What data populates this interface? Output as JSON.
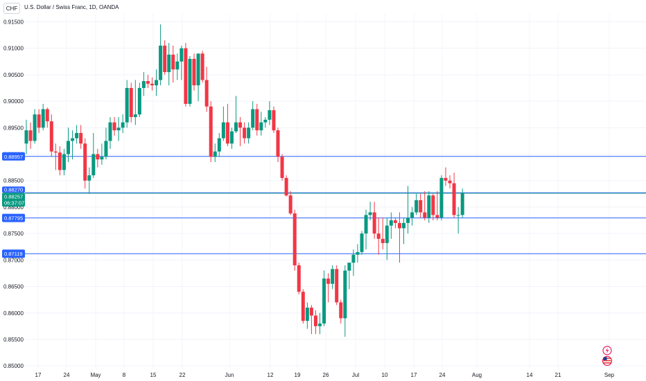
{
  "header": {
    "symbol": "CHF",
    "title": "U.S. Dollar / Swiss Franc, 1D, OANDA"
  },
  "price_tags": {
    "current_price": "0.88257",
    "countdown": "06:37:07"
  },
  "colors": {
    "up": "#089981",
    "down": "#f23645",
    "level_line": "#2962ff",
    "price_line": "#2a9d8f"
  },
  "icons": [
    "lightning-icon",
    "us-flag-icon"
  ],
  "chart_data": {
    "type": "candlestick",
    "ylim": [
      0.8495,
      0.9165
    ],
    "y_ticks": [
      "0.91500",
      "0.91000",
      "0.90500",
      "0.90000",
      "0.89500",
      "0.89000",
      "0.88500",
      "0.88000",
      "0.87500",
      "0.87000",
      "0.86500",
      "0.86000",
      "0.85500",
      "0.85000"
    ],
    "x_ticks": [
      "17",
      "24",
      "May",
      "8",
      "15",
      "22",
      "Jun",
      "12",
      "19",
      "26",
      "Jul",
      "10",
      "17",
      "24",
      "Aug",
      "14",
      "21",
      "Sep"
    ],
    "levels": [
      {
        "price": "0.88957"
      },
      {
        "price": "0.88270"
      },
      {
        "price": "0.87795"
      },
      {
        "price": "0.87119"
      }
    ],
    "candles": [
      [
        0.892,
        0.8965,
        0.89,
        0.8945
      ],
      [
        0.8945,
        0.896,
        0.891,
        0.8925
      ],
      [
        0.8925,
        0.8985,
        0.892,
        0.8975
      ],
      [
        0.8975,
        0.8985,
        0.894,
        0.895
      ],
      [
        0.895,
        0.8995,
        0.8945,
        0.8985
      ],
      [
        0.8985,
        0.8988,
        0.895,
        0.8962
      ],
      [
        0.8962,
        0.8975,
        0.8895,
        0.8905
      ],
      [
        0.8905,
        0.892,
        0.887,
        0.8903
      ],
      [
        0.8903,
        0.8915,
        0.886,
        0.887
      ],
      [
        0.887,
        0.891,
        0.886,
        0.89
      ],
      [
        0.89,
        0.895,
        0.8885,
        0.8925
      ],
      [
        0.8925,
        0.8945,
        0.889,
        0.893
      ],
      [
        0.893,
        0.8955,
        0.892,
        0.894
      ],
      [
        0.894,
        0.8955,
        0.891,
        0.892
      ],
      [
        0.892,
        0.893,
        0.8835,
        0.885
      ],
      [
        0.885,
        0.8875,
        0.8825,
        0.886
      ],
      [
        0.886,
        0.894,
        0.8855,
        0.89
      ],
      [
        0.89,
        0.891,
        0.8875,
        0.889
      ],
      [
        0.889,
        0.892,
        0.888,
        0.8895
      ],
      [
        0.8895,
        0.895,
        0.889,
        0.8925
      ],
      [
        0.8925,
        0.897,
        0.891,
        0.896
      ],
      [
        0.896,
        0.897,
        0.8935,
        0.8945
      ],
      [
        0.8945,
        0.897,
        0.8925,
        0.895
      ],
      [
        0.895,
        0.8975,
        0.894,
        0.896
      ],
      [
        0.896,
        0.904,
        0.895,
        0.9025
      ],
      [
        0.9025,
        0.9035,
        0.896,
        0.897
      ],
      [
        0.897,
        0.904,
        0.8955,
        0.8975
      ],
      [
        0.8975,
        0.9035,
        0.897,
        0.9025
      ],
      [
        0.9025,
        0.9055,
        0.901,
        0.9038
      ],
      [
        0.9038,
        0.905,
        0.9025,
        0.9033
      ],
      [
        0.9033,
        0.9045,
        0.902,
        0.903
      ],
      [
        0.903,
        0.906,
        0.901,
        0.904
      ],
      [
        0.904,
        0.9145,
        0.903,
        0.9105
      ],
      [
        0.9105,
        0.9115,
        0.905,
        0.9055
      ],
      [
        0.9055,
        0.911,
        0.903,
        0.9088
      ],
      [
        0.9088,
        0.9105,
        0.9035,
        0.906
      ],
      [
        0.906,
        0.909,
        0.904,
        0.9075
      ],
      [
        0.9075,
        0.9105,
        0.904,
        0.91
      ],
      [
        0.91,
        0.911,
        0.899,
        0.8995
      ],
      [
        0.8995,
        0.9085,
        0.899,
        0.908
      ],
      [
        0.908,
        0.909,
        0.902,
        0.903
      ],
      [
        0.903,
        0.909,
        0.9,
        0.909
      ],
      [
        0.909,
        0.9095,
        0.9035,
        0.904
      ],
      [
        0.904,
        0.9065,
        0.898,
        0.899
      ],
      [
        0.899,
        0.9,
        0.8885,
        0.8895
      ],
      [
        0.8895,
        0.892,
        0.8885,
        0.8905
      ],
      [
        0.8905,
        0.894,
        0.8895,
        0.893
      ],
      [
        0.893,
        0.899,
        0.8925,
        0.896
      ],
      [
        0.896,
        0.8995,
        0.8915,
        0.892
      ],
      [
        0.892,
        0.895,
        0.891,
        0.8943
      ],
      [
        0.8943,
        0.901,
        0.894,
        0.896
      ],
      [
        0.896,
        0.897,
        0.8915,
        0.895
      ],
      [
        0.895,
        0.896,
        0.892,
        0.893
      ],
      [
        0.893,
        0.896,
        0.892,
        0.895
      ],
      [
        0.895,
        0.9,
        0.8945,
        0.8985
      ],
      [
        0.8985,
        0.8995,
        0.8935,
        0.8945
      ],
      [
        0.8945,
        0.898,
        0.8935,
        0.896
      ],
      [
        0.896,
        0.897,
        0.895,
        0.8965
      ],
      [
        0.8965,
        0.9,
        0.8955,
        0.8983
      ],
      [
        0.8983,
        0.899,
        0.894,
        0.8945
      ],
      [
        0.8945,
        0.895,
        0.8885,
        0.8895
      ],
      [
        0.8895,
        0.89,
        0.885,
        0.8855
      ],
      [
        0.8855,
        0.886,
        0.882,
        0.8822
      ],
      [
        0.8822,
        0.883,
        0.8785,
        0.8788
      ],
      [
        0.8788,
        0.8795,
        0.868,
        0.869
      ],
      [
        0.869,
        0.8695,
        0.8635,
        0.864
      ],
      [
        0.864,
        0.8645,
        0.858,
        0.8585
      ],
      [
        0.8585,
        0.862,
        0.857,
        0.861
      ],
      [
        0.861,
        0.8615,
        0.856,
        0.8595
      ],
      [
        0.8595,
        0.8605,
        0.856,
        0.8575
      ],
      [
        0.8575,
        0.86,
        0.856,
        0.858
      ],
      [
        0.858,
        0.868,
        0.8575,
        0.8665
      ],
      [
        0.8665,
        0.8675,
        0.862,
        0.8655
      ],
      [
        0.8655,
        0.869,
        0.8645,
        0.8683
      ],
      [
        0.8683,
        0.869,
        0.8615,
        0.862
      ],
      [
        0.862,
        0.8625,
        0.858,
        0.859
      ],
      [
        0.859,
        0.869,
        0.8555,
        0.868
      ],
      [
        0.868,
        0.869,
        0.8645,
        0.8695
      ],
      [
        0.8695,
        0.872,
        0.867,
        0.871
      ],
      [
        0.871,
        0.873,
        0.8695,
        0.8715
      ],
      [
        0.8715,
        0.8755,
        0.871,
        0.875
      ],
      [
        0.875,
        0.8795,
        0.872,
        0.8785
      ],
      [
        0.8785,
        0.881,
        0.8775,
        0.879
      ],
      [
        0.879,
        0.881,
        0.874,
        0.875
      ],
      [
        0.875,
        0.878,
        0.871,
        0.874
      ],
      [
        0.874,
        0.878,
        0.872,
        0.8732
      ],
      [
        0.8732,
        0.878,
        0.87,
        0.8765
      ],
      [
        0.8765,
        0.879,
        0.874,
        0.8775
      ],
      [
        0.8775,
        0.878,
        0.876,
        0.877
      ],
      [
        0.877,
        0.879,
        0.8695,
        0.876
      ],
      [
        0.876,
        0.878,
        0.873,
        0.877
      ],
      [
        0.877,
        0.884,
        0.875,
        0.878
      ],
      [
        0.878,
        0.88,
        0.8765,
        0.879
      ],
      [
        0.879,
        0.8825,
        0.8785,
        0.8813
      ],
      [
        0.8813,
        0.8825,
        0.878,
        0.879
      ],
      [
        0.879,
        0.883,
        0.8775,
        0.878
      ],
      [
        0.878,
        0.883,
        0.877,
        0.8822
      ],
      [
        0.8822,
        0.8825,
        0.8775,
        0.8785
      ],
      [
        0.8785,
        0.883,
        0.8775,
        0.878
      ],
      [
        0.878,
        0.886,
        0.8775,
        0.8855
      ],
      [
        0.8855,
        0.8875,
        0.884,
        0.885
      ],
      [
        0.885,
        0.886,
        0.8835,
        0.8845
      ],
      [
        0.8845,
        0.8865,
        0.878,
        0.8785
      ],
      [
        0.8785,
        0.88,
        0.875,
        0.8785
      ],
      [
        0.8785,
        0.8835,
        0.878,
        0.8826
      ]
    ]
  }
}
